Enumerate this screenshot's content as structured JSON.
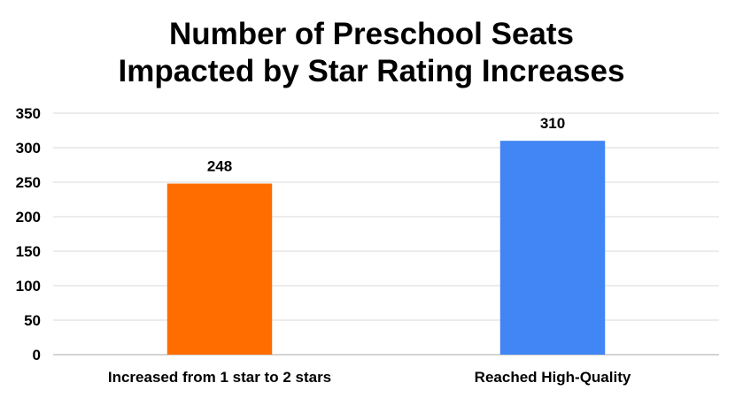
{
  "chart_data": {
    "type": "bar",
    "title_lines": [
      "Number of Preschool Seats",
      "Impacted by Star Rating Increases"
    ],
    "categories": [
      "Increased from 1 star to 2 stars",
      "Reached High-Quality"
    ],
    "values": [
      248,
      310
    ],
    "data_labels": [
      "248",
      "310"
    ],
    "colors": [
      "#FF6D00",
      "#4285F4"
    ],
    "ylim": [
      0,
      350
    ],
    "yticks": [
      "0",
      "50",
      "100",
      "150",
      "200",
      "250",
      "300",
      "350"
    ],
    "grid": true,
    "legend": "none"
  }
}
